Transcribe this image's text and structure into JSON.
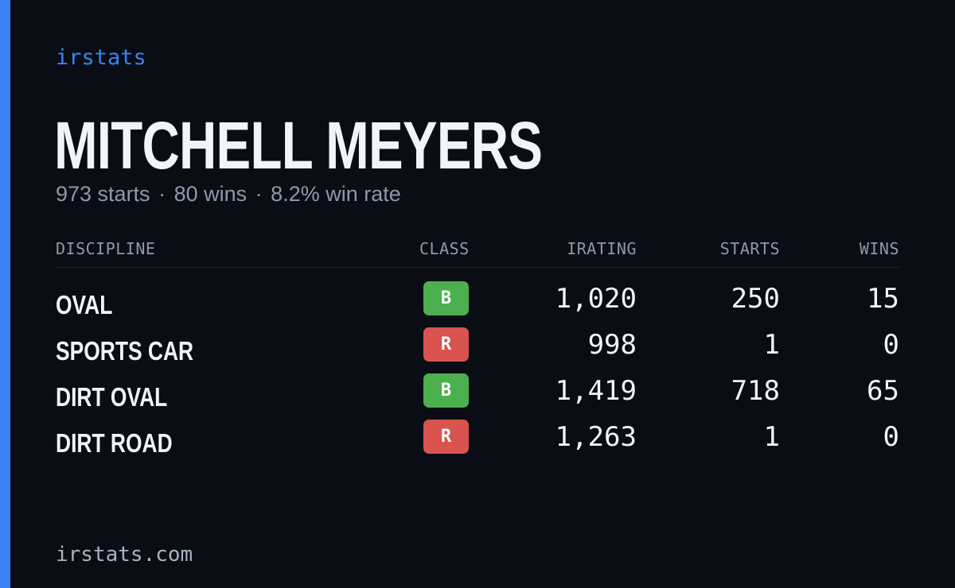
{
  "brand": "irstats",
  "driver": {
    "name": "MITCHELL MEYERS",
    "starts_text": "973 starts",
    "wins_text": "80 wins",
    "win_rate_text": "8.2% win rate",
    "separator": "·"
  },
  "table": {
    "headers": {
      "discipline": "DISCIPLINE",
      "class": "CLASS",
      "irating": "IRATING",
      "starts": "STARTS",
      "wins": "WINS"
    },
    "rows": [
      {
        "discipline": "OVAL",
        "class": "B",
        "class_color": "#4caf50",
        "irating": "1,020",
        "starts": "250",
        "wins": "15"
      },
      {
        "discipline": "SPORTS CAR",
        "class": "R",
        "class_color": "#d9534f",
        "irating": "998",
        "starts": "1",
        "wins": "0"
      },
      {
        "discipline": "DIRT OVAL",
        "class": "B",
        "class_color": "#4caf50",
        "irating": "1,419",
        "starts": "718",
        "wins": "65"
      },
      {
        "discipline": "DIRT ROAD",
        "class": "R",
        "class_color": "#d9534f",
        "irating": "1,263",
        "starts": "1",
        "wins": "0"
      }
    ]
  },
  "footer": "irstats.com",
  "colors": {
    "accent": "#3b82f6",
    "background": "#0a0d14",
    "muted_text": "#8e99ab",
    "primary_text": "#f1f4f8"
  }
}
